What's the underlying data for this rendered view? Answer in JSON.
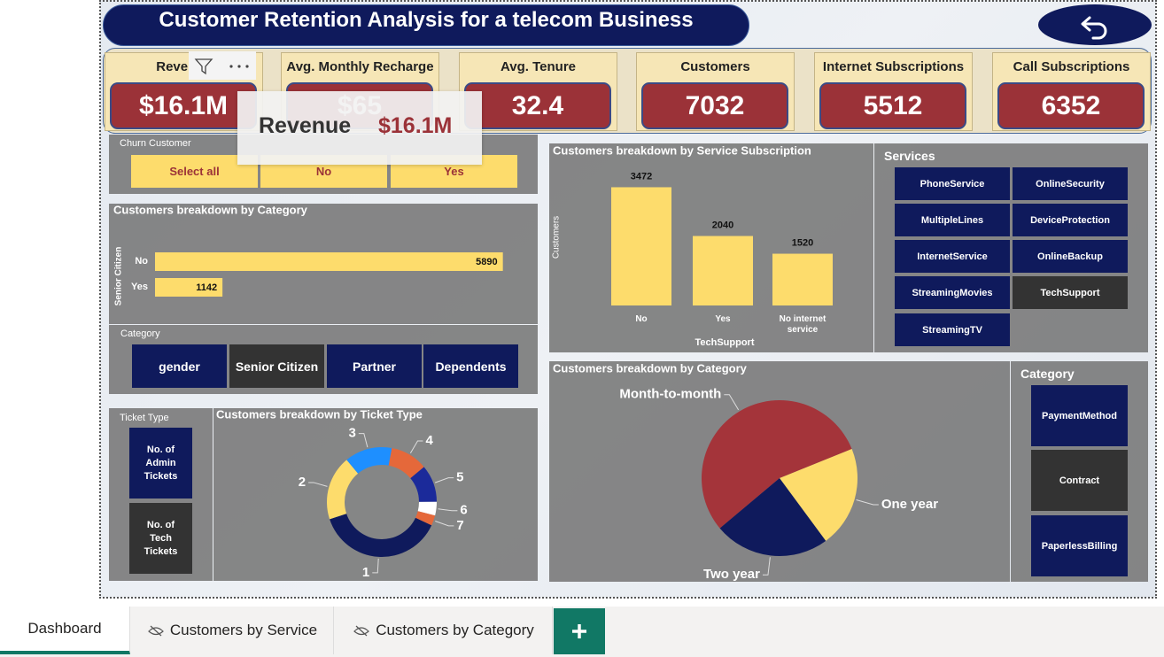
{
  "header": {
    "title": "Customer Retention Analysis for a telecom Business"
  },
  "kpis": [
    {
      "label": "Revenue",
      "value": "$16.1M"
    },
    {
      "label": "Avg. Monthly Recharge",
      "value": "$65"
    },
    {
      "label": "Avg. Tenure",
      "value": "32.4"
    },
    {
      "label": "Customers",
      "value": "7032"
    },
    {
      "label": "Internet Subscriptions",
      "value": "5512"
    },
    {
      "label": "Call Subscriptions",
      "value": "6352"
    }
  ],
  "tooltip": {
    "label": "Revenue",
    "value": "$16.1M"
  },
  "churn_slicer": {
    "title": "Churn Customer",
    "options": [
      "Select all",
      "No",
      "Yes"
    ]
  },
  "category_slicer": {
    "title": "Category",
    "options": [
      "gender",
      "Senior Citizen",
      "Partner",
      "Dependents"
    ],
    "selected": 1
  },
  "ticket_slicer": {
    "title": "Ticket Type",
    "options": [
      "No. of Admin Tickets",
      "No. of Tech Tickets"
    ],
    "selected": 1
  },
  "services_slicer": {
    "title": "Services",
    "options": [
      "PhoneService",
      "OnlineSecurity",
      "MultipleLines",
      "DeviceProtection",
      "InternetService",
      "OnlineBackup",
      "StreamingMovies",
      "TechSupport",
      "StreamingTV"
    ],
    "selected": 7
  },
  "contract_slicer": {
    "title": "Category",
    "options": [
      "PaymentMethod",
      "Contract",
      "PaperlessBilling"
    ],
    "selected": 1
  },
  "tabs": [
    "Dashboard",
    "Customers by Service",
    "Customers by Category"
  ],
  "chart_data": [
    {
      "type": "bar",
      "orientation": "horizontal",
      "title": "Customers breakdown by Category",
      "y_label": "Senior Citizen",
      "categories": [
        "No",
        "Yes"
      ],
      "values": [
        5890,
        1142
      ],
      "color": "#fddc6c",
      "xlim": [
        0,
        6450
      ]
    },
    {
      "type": "bar",
      "orientation": "vertical",
      "title": "Customers breakdown by Service Subscription",
      "x_label": "TechSupport",
      "y_label": "Customers",
      "categories": [
        "No",
        "Yes",
        "No internet service"
      ],
      "values": [
        3472,
        2040,
        1520
      ],
      "color": "#fddc6c",
      "ylim": [
        0,
        3900
      ]
    },
    {
      "type": "donut",
      "title": "Customers breakdown by Ticket Type",
      "categories": [
        "1",
        "2",
        "3",
        "4",
        "5",
        "6",
        "7"
      ],
      "values": [
        38,
        19,
        14,
        11,
        11,
        4,
        3
      ],
      "colors": [
        "#0f1a5c",
        "#fddc6c",
        "#1e8fff",
        "#e5683a",
        "#1b2a9a",
        "#ffffff",
        "#e5683a"
      ]
    },
    {
      "type": "pie",
      "title": "Customers breakdown by Category",
      "categories": [
        "Month-to-month",
        "One year",
        "Two year"
      ],
      "values": [
        55,
        21,
        24
      ],
      "colors": [
        "#a4343a",
        "#fddc6c",
        "#0f1a5c"
      ]
    }
  ]
}
